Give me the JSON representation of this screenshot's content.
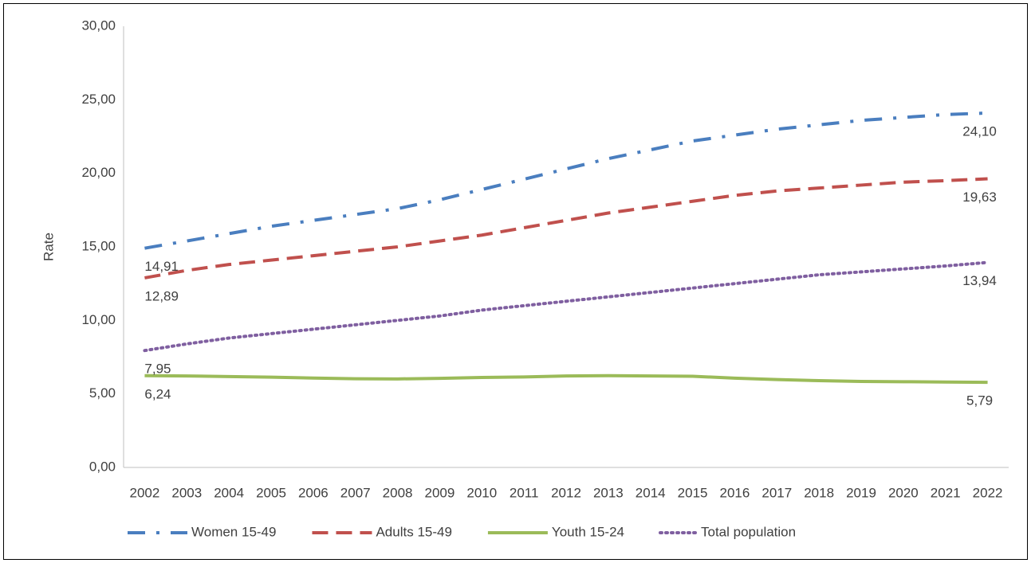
{
  "chart_data": {
    "type": "line",
    "y_label": "Rate",
    "categories": [
      "2002",
      "2003",
      "2004",
      "2005",
      "2006",
      "2007",
      "2008",
      "2009",
      "2010",
      "2011",
      "2012",
      "2013",
      "2014",
      "2015",
      "2016",
      "2017",
      "2018",
      "2019",
      "2020",
      "2021",
      "2022"
    ],
    "ylim": [
      0,
      30
    ],
    "yticks": [
      {
        "value": 0,
        "label": "0,00"
      },
      {
        "value": 5,
        "label": "5,00"
      },
      {
        "value": 10,
        "label": "10,00"
      },
      {
        "value": 15,
        "label": "15,00"
      },
      {
        "value": 20,
        "label": "20,00"
      },
      {
        "value": 25,
        "label": "25,00"
      },
      {
        "value": 30,
        "label": "30,00"
      }
    ],
    "grid": false,
    "legend": "bottom",
    "series": [
      {
        "name": "Women 15-49",
        "color": "#4a7ebf",
        "style": "dash-dot",
        "values": [
          14.91,
          15.4,
          15.9,
          16.4,
          16.8,
          17.2,
          17.6,
          18.2,
          18.9,
          19.6,
          20.3,
          21.0,
          21.6,
          22.2,
          22.6,
          23.0,
          23.3,
          23.6,
          23.8,
          24.0,
          24.1
        ],
        "value_labels": [
          "14,91",
          null,
          null,
          null,
          null,
          null,
          null,
          null,
          null,
          null,
          null,
          null,
          null,
          null,
          null,
          null,
          null,
          null,
          null,
          null,
          "24,10"
        ]
      },
      {
        "name": "Adults 15-49",
        "color": "#c0504d",
        "style": "dash",
        "values": [
          12.89,
          13.4,
          13.8,
          14.1,
          14.4,
          14.7,
          15.0,
          15.4,
          15.8,
          16.3,
          16.8,
          17.3,
          17.7,
          18.1,
          18.5,
          18.8,
          19.0,
          19.2,
          19.4,
          19.5,
          19.63
        ],
        "value_labels": [
          "12,89",
          null,
          null,
          null,
          null,
          null,
          null,
          null,
          null,
          null,
          null,
          null,
          null,
          null,
          null,
          null,
          null,
          null,
          null,
          null,
          "19,63"
        ]
      },
      {
        "name": "Youth 15-24",
        "color": "#9bbb59",
        "style": "solid",
        "values": [
          6.24,
          6.22,
          6.18,
          6.14,
          6.08,
          6.03,
          6.02,
          6.06,
          6.12,
          6.15,
          6.22,
          6.24,
          6.22,
          6.2,
          6.07,
          5.98,
          5.9,
          5.85,
          5.83,
          5.81,
          5.79
        ],
        "value_labels": [
          "6,24",
          null,
          null,
          null,
          null,
          null,
          null,
          null,
          null,
          null,
          null,
          null,
          null,
          null,
          null,
          null,
          null,
          null,
          null,
          null,
          "5,79"
        ]
      },
      {
        "name": "Total population",
        "color": "#7f5fa0",
        "style": "dot",
        "values": [
          7.95,
          8.4,
          8.8,
          9.1,
          9.4,
          9.7,
          10.0,
          10.3,
          10.7,
          11.0,
          11.3,
          11.6,
          11.9,
          12.2,
          12.5,
          12.8,
          13.1,
          13.3,
          13.5,
          13.7,
          13.94
        ],
        "value_labels": [
          "7,95",
          null,
          null,
          null,
          null,
          null,
          null,
          null,
          null,
          null,
          null,
          null,
          null,
          null,
          null,
          null,
          null,
          null,
          null,
          null,
          "13,94"
        ]
      }
    ]
  }
}
